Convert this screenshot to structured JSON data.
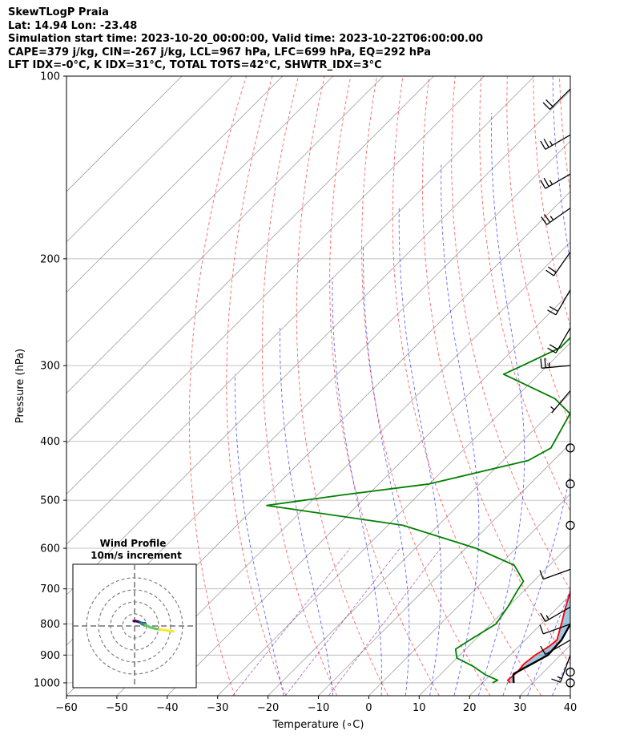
{
  "header": {
    "title": "SkewTLogP Praia",
    "location": "Lat: 14.94   Lon: -23.48",
    "times": "Simulation start time: 2023-10-20_00:00:00, Valid time: 2023-10-22T06:00:00.00",
    "params": "CAPE=379 j/kg, CIN=-267 j/kg, LCL=967 hPa, LFC=699 hPa, EQ=292 hPa",
    "indices": "LFT IDX=-0°C, K IDX=31°C, TOTAL TOTS=42°C, SHWTR_IDX=3°C"
  },
  "chart_data": {
    "type": "line",
    "title": "SkewTLogP Praia",
    "xlabel": "Temperature (∘C)",
    "ylabel": "Pressure (hPa)",
    "xlim": [
      -60,
      40
    ],
    "plim": [
      1050,
      100
    ],
    "xticks": [
      "−60",
      "−50",
      "−40",
      "−30",
      "−20",
      "−10",
      "0",
      "10",
      "20",
      "30",
      "40"
    ],
    "xtick_values": [
      -60,
      -50,
      -40,
      -30,
      -20,
      -10,
      0,
      10,
      20,
      30,
      40
    ],
    "yticks": [
      "100",
      "200",
      "300",
      "400",
      "500",
      "600",
      "700",
      "800",
      "900",
      "1000"
    ],
    "ytick_values": [
      100,
      200,
      300,
      400,
      500,
      600,
      700,
      800,
      900,
      1000
    ],
    "colors": {
      "temperature": "#ff0000",
      "dewpoint": "#008000",
      "parcel": "#000000",
      "cape": "#1f77b4",
      "cin": "#d62728",
      "dry_adiabat": "#ff0000",
      "moist_adiabat": "#0000ff",
      "mixing_ratio": "#800080",
      "isotherm": "#808080"
    },
    "series": [
      {
        "name": "Temperature",
        "points": [
          [
            1000,
            25.5
          ],
          [
            990,
            24.5
          ],
          [
            960,
            24.8
          ],
          [
            930,
            24.5
          ],
          [
            900,
            25
          ],
          [
            870,
            26
          ],
          [
            850,
            26.3
          ],
          [
            800,
            24
          ],
          [
            750,
            21.5
          ],
          [
            700,
            19
          ],
          [
            650,
            17.5
          ],
          [
            600,
            16
          ],
          [
            550,
            15
          ],
          [
            500,
            13.5
          ],
          [
            450,
            10.5
          ],
          [
            400,
            6
          ],
          [
            350,
            0
          ],
          [
            320,
            -3.5
          ],
          [
            300,
            -6
          ],
          [
            280,
            -8
          ],
          [
            250,
            -12
          ],
          [
            220,
            -17
          ],
          [
            200,
            -21
          ],
          [
            175,
            -26
          ],
          [
            150,
            -32
          ],
          [
            130,
            -38
          ],
          [
            115,
            -43
          ],
          [
            100,
            -48
          ]
        ]
      },
      {
        "name": "Dewpoint",
        "points": [
          [
            1000,
            22
          ],
          [
            990,
            22.5
          ],
          [
            970,
            19
          ],
          [
            940,
            15
          ],
          [
            910,
            10
          ],
          [
            880,
            8
          ],
          [
            850,
            9
          ],
          [
            800,
            11
          ],
          [
            750,
            10
          ],
          [
            700,
            8.5
          ],
          [
            680,
            8
          ],
          [
            640,
            3
          ],
          [
            600,
            -8
          ],
          [
            550,
            -27
          ],
          [
            510,
            -58
          ],
          [
            490,
            -45
          ],
          [
            470,
            -30
          ],
          [
            430,
            -15
          ],
          [
            410,
            -13
          ],
          [
            360,
            -16
          ],
          [
            340,
            -22
          ],
          [
            310,
            -37
          ],
          [
            300,
            -35
          ],
          [
            280,
            -31
          ],
          [
            250,
            -31
          ],
          [
            230,
            -31
          ],
          [
            215,
            -33
          ],
          [
            200,
            -34
          ],
          [
            180,
            -33
          ],
          [
            160,
            -33
          ],
          [
            140,
            -36
          ],
          [
            120,
            -39
          ],
          [
            100,
            -45
          ]
        ]
      },
      {
        "name": "Parcel",
        "points": [
          [
            1000,
            26.2
          ],
          [
            967,
            24.4
          ],
          [
            900,
            27.5
          ],
          [
            850,
            27.2
          ],
          [
            800,
            25.8
          ],
          [
            750,
            24.1
          ],
          [
            700,
            22.2
          ],
          [
            650,
            20.4
          ],
          [
            600,
            18.2
          ],
          [
            550,
            15.9
          ],
          [
            500,
            13.2
          ],
          [
            450,
            10.2
          ],
          [
            400,
            6.2
          ],
          [
            350,
            1.2
          ],
          [
            300,
            -4.8
          ],
          [
            250,
            -12.8
          ],
          [
            200,
            -22.8
          ],
          [
            150,
            -36.8
          ],
          [
            100,
            -55
          ]
        ]
      }
    ],
    "wind_barbs": [
      {
        "p": 1000,
        "label": "calm"
      },
      {
        "p": 960,
        "label": "calm"
      },
      {
        "p": 900,
        "speed": 15,
        "dir": 200
      },
      {
        "p": 850,
        "speed": 10,
        "dir": 240
      },
      {
        "p": 800,
        "speed": 12,
        "dir": 250
      },
      {
        "p": 750,
        "speed": 15,
        "dir": 240
      },
      {
        "p": 650,
        "speed": 12,
        "dir": 250
      },
      {
        "p": 550,
        "label": "calm"
      },
      {
        "p": 470,
        "label": "calm"
      },
      {
        "p": 410,
        "label": "calm"
      },
      {
        "p": 330,
        "speed": 5,
        "dir": 220
      },
      {
        "p": 300,
        "speed": 25,
        "dir": 265
      },
      {
        "p": 260,
        "speed": 20,
        "dir": 210
      },
      {
        "p": 225,
        "speed": 20,
        "dir": 210
      },
      {
        "p": 195,
        "speed": 20,
        "dir": 215
      },
      {
        "p": 165,
        "speed": 25,
        "dir": 235
      },
      {
        "p": 145,
        "speed": 25,
        "dir": 240
      },
      {
        "p": 125,
        "speed": 25,
        "dir": 240
      },
      {
        "p": 105,
        "speed": 20,
        "dir": 225
      }
    ],
    "hodograph": {
      "title": "Wind Profile",
      "subtitle": "10m/s increment",
      "rings": [
        10,
        20,
        30,
        40
      ],
      "points": [
        [
          -0.3,
          1.9
        ],
        [
          0.5,
          2.1
        ],
        [
          1.0,
          2.8
        ],
        [
          1.2,
          3.0
        ],
        [
          1.5,
          3.4
        ],
        [
          1.8,
          3.9
        ],
        [
          2.2,
          4.5
        ],
        [
          2.8,
          4.8
        ],
        [
          3.5,
          5.0
        ],
        [
          3.0,
          5.2
        ],
        [
          2.2,
          5.5
        ],
        [
          3.0,
          5.8
        ],
        [
          3.2,
          6.4
        ],
        [
          2.8,
          6.2
        ],
        [
          2.5,
          6.6
        ],
        [
          3.5,
          7.5
        ],
        [
          4.5,
          9.0
        ],
        [
          5.0,
          10.5
        ],
        [
          5.8,
          11.3
        ],
        [
          7.0,
          12.8
        ],
        [
          8.3,
          13.7
        ],
        [
          9.8,
          14.3
        ],
        [
          10.8,
          15.0
        ],
        [
          11.5,
          15.6
        ],
        [
          12.3,
          16.0
        ],
        [
          12.8,
          16.6
        ],
        [
          12.3,
          15.6
        ]
      ]
    }
  }
}
